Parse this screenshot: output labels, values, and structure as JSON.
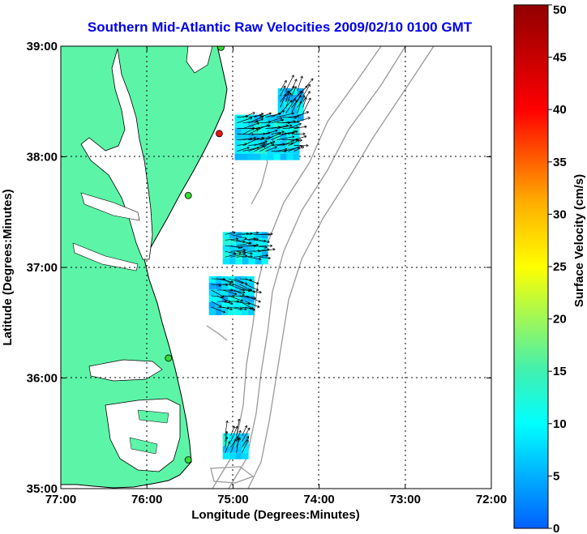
{
  "chart_data": {
    "type": "vector-map",
    "title": "Southern Mid-Atlantic Raw Velocities 2009/02/10 0100 GMT",
    "xlabel": "Longitude (Degrees:Minutes)",
    "ylabel": "Latitude (Degrees:Minutes)",
    "x_ticks": [
      "77:00",
      "76:00",
      "75:00",
      "74:00",
      "73:00",
      "72:00"
    ],
    "y_ticks": [
      "39:00",
      "38:00",
      "37:00",
      "36:00",
      "35:00"
    ],
    "xlim": [
      -77,
      -72
    ],
    "ylim": [
      35,
      39
    ],
    "grid": true,
    "colorbar": {
      "label": "Surface Velocity (cm/s)",
      "min": 0,
      "max": 50,
      "ticks": [
        "0",
        "5",
        "10",
        "15",
        "20",
        "25",
        "30",
        "35",
        "40",
        "45",
        "50"
      ]
    },
    "land_color": "#5cf5a8",
    "stations": [
      {
        "lon": -75.14,
        "lat": 38.99,
        "color": "#33dd33"
      },
      {
        "lon": -75.16,
        "lat": 38.21,
        "color": "#ee1111"
      },
      {
        "lon": -75.52,
        "lat": 37.65,
        "color": "#33dd33"
      },
      {
        "lon": -75.75,
        "lat": 36.18,
        "color": "#33dd33"
      },
      {
        "lon": -75.52,
        "lat": 35.26,
        "color": "#33dd33"
      }
    ],
    "vector_fields": [
      {
        "lon_range": [
          -74.98,
          -74.25
        ],
        "lat_range": [
          38.0,
          38.38
        ],
        "speed_cm_s": 9,
        "direction_deg": -12
      },
      {
        "lon_range": [
          -74.48,
          -74.18
        ],
        "lat_range": [
          38.38,
          38.62
        ],
        "speed_cm_s": 8,
        "direction_deg": -60
      },
      {
        "lon_range": [
          -75.12,
          -74.66
        ],
        "lat_range": [
          37.06,
          37.32
        ],
        "speed_cm_s": 9,
        "direction_deg": 0
      },
      {
        "lon_range": [
          -75.28,
          -74.8
        ],
        "lat_range": [
          36.62,
          36.92
        ],
        "speed_cm_s": 8,
        "direction_deg": 15
      },
      {
        "lon_range": [
          -75.12,
          -74.86
        ],
        "lat_range": [
          35.28,
          35.5
        ],
        "speed_cm_s": 9,
        "direction_deg": -70
      }
    ]
  }
}
